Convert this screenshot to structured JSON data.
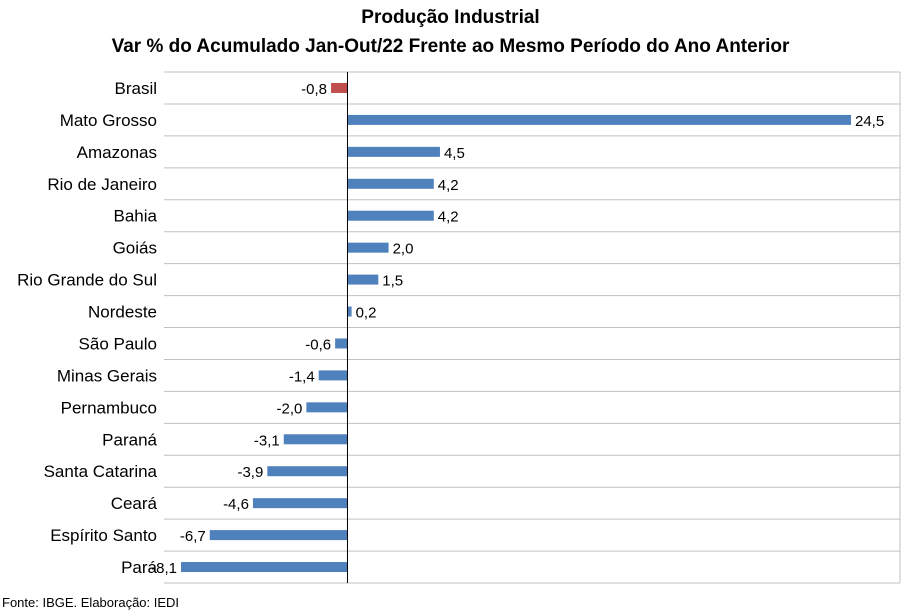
{
  "chart_data": {
    "type": "bar",
    "orientation": "horizontal",
    "title": "Produção Industrial",
    "subtitle": "Var % do Acumulado Jan-Out/22 Frente ao Mesmo Período do Ano Anterior",
    "categories": [
      "Brasil",
      "Mato Grosso",
      "Amazonas",
      "Rio de Janeiro",
      "Bahia",
      "Goiás",
      "Rio Grande do Sul",
      "Nordeste",
      "São Paulo",
      "Minas Gerais",
      "Pernambuco",
      "Paraná",
      "Santa Catarina",
      "Ceará",
      "Espírito Santo",
      "Pará"
    ],
    "values": [
      -0.8,
      24.5,
      4.5,
      4.2,
      4.2,
      2.0,
      1.5,
      0.2,
      -0.6,
      -1.4,
      -2.0,
      -3.1,
      -3.9,
      -4.6,
      -6.7,
      -8.1
    ],
    "labels": [
      "-0,8",
      "24,5",
      "4,5",
      "4,2",
      "4,2",
      "2,0",
      "1,5",
      "0,2",
      "-0,6",
      "-1,4",
      "-2,0",
      "-3,1",
      "-3,9",
      "-4,6",
      "-6,7",
      "-8,1"
    ],
    "xlim": [
      -8.1,
      24.5
    ],
    "grid": true,
    "colors": {
      "default": "#4f81bd",
      "highlight": "#c0504d",
      "grid": "#c0c0c0",
      "axis": "#000000"
    },
    "highlight_category": "Brasil"
  },
  "source": "Fonte: IBGE. Elaboração: IEDI"
}
